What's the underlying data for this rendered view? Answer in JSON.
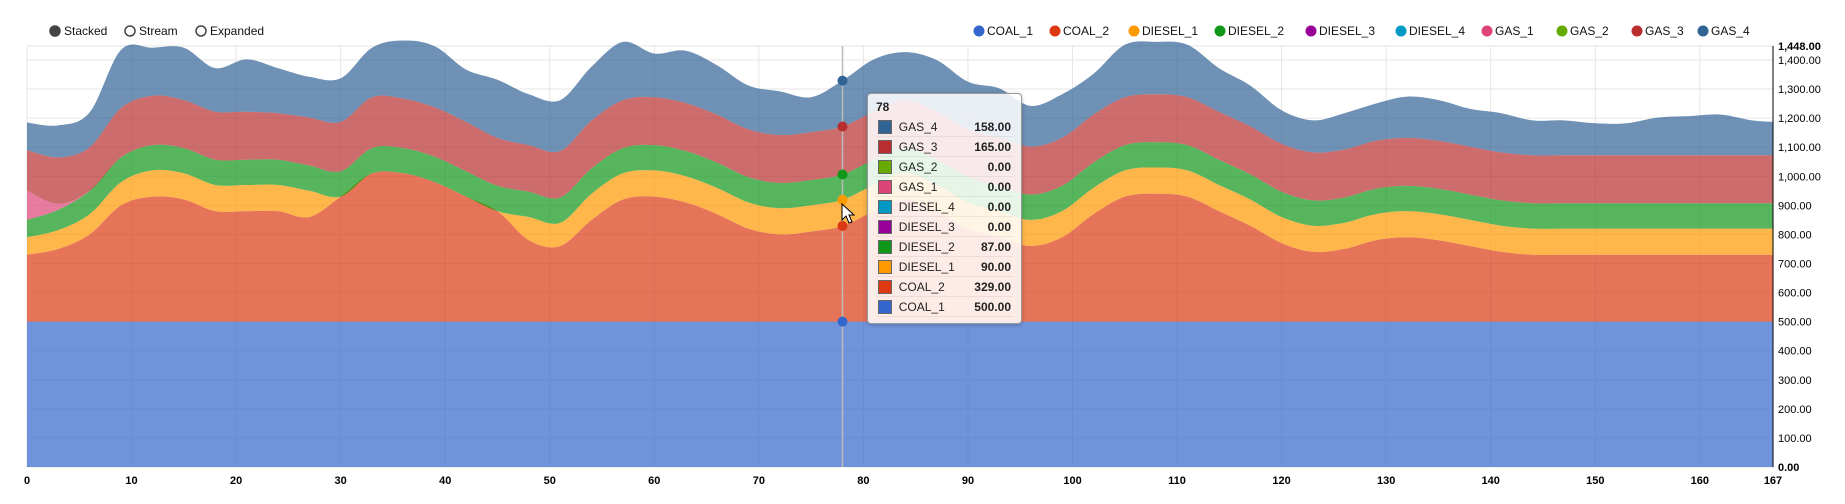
{
  "controls": [
    {
      "label": "Stacked",
      "selected": true
    },
    {
      "label": "Stream",
      "selected": false
    },
    {
      "label": "Expanded",
      "selected": false
    }
  ],
  "chart_data": {
    "type": "area",
    "stacked": true,
    "x": [
      0,
      3,
      6,
      9,
      12,
      15,
      18,
      21,
      24,
      27,
      30,
      33,
      36,
      39,
      42,
      45,
      48,
      51,
      54,
      57,
      60,
      63,
      66,
      69,
      72,
      75,
      78,
      81,
      84,
      87,
      90,
      93,
      96,
      99,
      102,
      105,
      108,
      111,
      114,
      117,
      120,
      123,
      126,
      129,
      132,
      135,
      138,
      141,
      144,
      147,
      150,
      153,
      156,
      159,
      162,
      165,
      167
    ],
    "xlim": [
      0,
      167
    ],
    "ylim": [
      0,
      1448
    ],
    "x_ticks": [
      0,
      10,
      20,
      30,
      40,
      50,
      60,
      70,
      80,
      90,
      100,
      110,
      120,
      130,
      140,
      150,
      160,
      167
    ],
    "y_ticks": [
      0,
      100,
      200,
      300,
      400,
      500,
      600,
      700,
      800,
      900,
      1000,
      1100,
      1200,
      1300,
      1400,
      1448
    ],
    "y_tick_labels": [
      "0.00",
      "100.00",
      "200.00",
      "300.00",
      "400.00",
      "500.00",
      "600.00",
      "700.00",
      "800.00",
      "900.00",
      "1,000.00",
      "1,100.00",
      "1,200.00",
      "1,300.00",
      "1,400.00",
      "1,448.00"
    ],
    "grid": true,
    "legend_position": "top-right",
    "series": [
      {
        "name": "COAL_1",
        "color": "#3366cc",
        "values": [
          500,
          500,
          500,
          500,
          500,
          500,
          500,
          500,
          500,
          500,
          500,
          500,
          500,
          500,
          500,
          500,
          500,
          500,
          500,
          500,
          500,
          500,
          500,
          500,
          500,
          500,
          500,
          500,
          500,
          500,
          500,
          500,
          500,
          500,
          500,
          500,
          500,
          500,
          500,
          500,
          500,
          500,
          500,
          500,
          500,
          500,
          500,
          500,
          500,
          500,
          500,
          500,
          500,
          500,
          500,
          500,
          500
        ]
      },
      {
        "name": "COAL_2",
        "color": "#dc3912",
        "values": [
          230,
          250,
          300,
          400,
          430,
          420,
          380,
          380,
          380,
          360,
          430,
          510,
          510,
          480,
          430,
          380,
          280,
          260,
          350,
          420,
          430,
          410,
          370,
          320,
          300,
          310,
          329,
          380,
          420,
          380,
          320,
          290,
          260,
          290,
          370,
          430,
          440,
          430,
          380,
          330,
          270,
          240,
          250,
          280,
          290,
          280,
          260,
          240,
          230,
          230,
          230,
          230,
          230,
          230,
          230,
          230,
          230
        ]
      },
      {
        "name": "DIESEL_1",
        "color": "#ff9900",
        "values": [
          60,
          65,
          70,
          80,
          90,
          90,
          90,
          90,
          90,
          90,
          0,
          0,
          0,
          0,
          0,
          0,
          80,
          80,
          90,
          90,
          90,
          90,
          90,
          90,
          90,
          90,
          90,
          90,
          90,
          90,
          90,
          90,
          90,
          90,
          90,
          90,
          90,
          90,
          90,
          90,
          90,
          90,
          90,
          90,
          90,
          90,
          90,
          90,
          90,
          90,
          90,
          90,
          90,
          90,
          90,
          90,
          90
        ]
      },
      {
        "name": "DIESEL_2",
        "color": "#109618",
        "values": [
          60,
          70,
          80,
          85,
          87,
          87,
          87,
          87,
          87,
          87,
          87,
          87,
          87,
          87,
          87,
          87,
          87,
          87,
          87,
          87,
          87,
          87,
          87,
          87,
          87,
          87,
          87,
          87,
          87,
          87,
          87,
          87,
          87,
          87,
          87,
          87,
          87,
          87,
          87,
          87,
          87,
          87,
          87,
          87,
          87,
          87,
          87,
          87,
          87,
          87,
          87,
          87,
          87,
          87,
          87,
          87,
          87
        ]
      },
      {
        "name": "DIESEL_3",
        "color": "#990099",
        "values": [
          0,
          0,
          0,
          0,
          0,
          0,
          0,
          0,
          0,
          0,
          0,
          0,
          0,
          0,
          0,
          0,
          0,
          0,
          0,
          0,
          0,
          0,
          0,
          0,
          0,
          0,
          0,
          0,
          0,
          0,
          0,
          0,
          0,
          0,
          0,
          0,
          0,
          0,
          0,
          0,
          0,
          0,
          0,
          0,
          0,
          0,
          0,
          0,
          0,
          0,
          0,
          0,
          0,
          0,
          0,
          0,
          0
        ]
      },
      {
        "name": "DIESEL_4",
        "color": "#0099c6",
        "values": [
          0,
          0,
          0,
          0,
          0,
          0,
          0,
          0,
          0,
          0,
          0,
          0,
          0,
          0,
          0,
          0,
          0,
          0,
          0,
          0,
          0,
          0,
          0,
          0,
          0,
          0,
          0,
          0,
          0,
          0,
          0,
          0,
          0,
          0,
          0,
          0,
          0,
          0,
          0,
          0,
          0,
          0,
          0,
          0,
          0,
          0,
          0,
          0,
          0,
          0,
          0,
          0,
          0,
          0,
          0,
          0,
          0
        ]
      },
      {
        "name": "GAS_1",
        "color": "#dd4477",
        "values": [
          100,
          20,
          0,
          0,
          0,
          0,
          0,
          0,
          0,
          0,
          0,
          0,
          0,
          0,
          0,
          0,
          0,
          0,
          0,
          0,
          0,
          0,
          0,
          0,
          0,
          0,
          0,
          0,
          0,
          0,
          0,
          0,
          0,
          0,
          0,
          0,
          0,
          0,
          0,
          0,
          0,
          0,
          0,
          0,
          0,
          0,
          0,
          0,
          0,
          0,
          0,
          0,
          0,
          0,
          0,
          0,
          0
        ]
      },
      {
        "name": "GAS_2",
        "color": "#66aa00",
        "values": [
          0,
          0,
          0,
          0,
          0,
          0,
          0,
          0,
          0,
          0,
          0,
          0,
          0,
          0,
          0,
          0,
          0,
          0,
          0,
          0,
          0,
          0,
          0,
          0,
          0,
          0,
          0,
          0,
          0,
          0,
          0,
          0,
          0,
          0,
          0,
          0,
          0,
          0,
          0,
          0,
          0,
          0,
          0,
          0,
          0,
          0,
          0,
          0,
          0,
          0,
          0,
          0,
          0,
          0,
          0,
          0,
          0
        ]
      },
      {
        "name": "GAS_3",
        "color": "#b82e2e",
        "values": [
          140,
          160,
          150,
          170,
          170,
          165,
          165,
          165,
          160,
          165,
          170,
          175,
          170,
          170,
          170,
          165,
          160,
          160,
          165,
          165,
          165,
          165,
          165,
          165,
          165,
          165,
          165,
          165,
          165,
          165,
          165,
          165,
          165,
          165,
          165,
          165,
          165,
          165,
          165,
          165,
          165,
          165,
          165,
          165,
          165,
          165,
          165,
          165,
          165,
          165,
          165,
          165,
          165,
          165,
          165,
          165,
          165
        ]
      },
      {
        "name": "GAS_4",
        "color": "#316395",
        "values": [
          95,
          110,
          120,
          200,
          165,
          180,
          150,
          180,
          155,
          140,
          150,
          170,
          200,
          210,
          180,
          200,
          175,
          175,
          185,
          200,
          150,
          180,
          170,
          150,
          150,
          120,
          158,
          180,
          165,
          178,
          163,
          170,
          140,
          150,
          140,
          180,
          180,
          180,
          150,
          140,
          115,
          110,
          125,
          128,
          142,
          140,
          130,
          135,
          120,
          120,
          110,
          110,
          130,
          135,
          140,
          120,
          115
        ]
      }
    ]
  },
  "tooltip": {
    "title": "78",
    "rows": [
      {
        "name": "GAS_4",
        "value": "158.00",
        "color": "#316395"
      },
      {
        "name": "GAS_3",
        "value": "165.00",
        "color": "#b82e2e"
      },
      {
        "name": "GAS_2",
        "value": "0.00",
        "color": "#66aa00"
      },
      {
        "name": "GAS_1",
        "value": "0.00",
        "color": "#dd4477"
      },
      {
        "name": "DIESEL_4",
        "value": "0.00",
        "color": "#0099c6"
      },
      {
        "name": "DIESEL_3",
        "value": "0.00",
        "color": "#990099"
      },
      {
        "name": "DIESEL_2",
        "value": "87.00",
        "color": "#109618"
      },
      {
        "name": "DIESEL_1",
        "value": "90.00",
        "color": "#ff9900"
      },
      {
        "name": "COAL_2",
        "value": "329.00",
        "color": "#dc3912"
      },
      {
        "name": "COAL_1",
        "value": "500.00",
        "color": "#3366cc"
      }
    ]
  },
  "hover_x": 78
}
